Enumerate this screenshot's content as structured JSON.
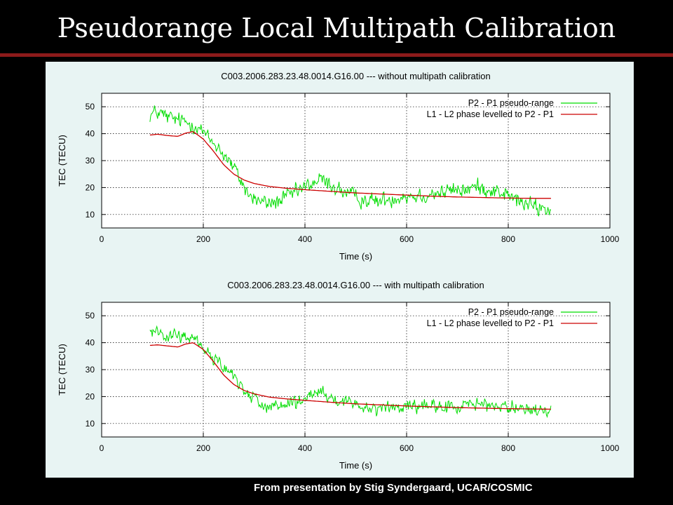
{
  "slide": {
    "title": "Pseudorange Local Multipath Calibration",
    "footer": "From presentation by Stig Syndergaard, UCAR/COSMIC"
  },
  "colors": {
    "background": "#000000",
    "title_rule": "#8c1a1a",
    "panel": "#e8f4f3",
    "pseudo_range": "#00dd00",
    "phase": "#cc0000"
  },
  "chart_data": [
    {
      "type": "line",
      "title": "C003.2006.283.23.48.0014.G16.00 --- without multipath calibration",
      "xlabel": "Time (s)",
      "ylabel": "TEC (TECU)",
      "xlim": [
        0,
        1000
      ],
      "ylim": [
        5,
        55
      ],
      "xticks": [
        0,
        200,
        400,
        600,
        800,
        1000
      ],
      "yticks": [
        10,
        20,
        30,
        40,
        50
      ],
      "grid": true,
      "legend": "top-right",
      "series": [
        {
          "name": "P2 - P1 pseudo-range",
          "color": "#00dd00",
          "noise": 2.2,
          "x": [
            95,
            110,
            130,
            150,
            170,
            190,
            210,
            230,
            250,
            270,
            290,
            310,
            330,
            350,
            370,
            390,
            410,
            430,
            450,
            470,
            490,
            510,
            530,
            550,
            570,
            590,
            610,
            630,
            650,
            670,
            690,
            710,
            730,
            750,
            770,
            790,
            810,
            830,
            850,
            870,
            885
          ],
          "y": [
            47,
            48,
            46,
            45,
            44,
            43,
            38,
            35,
            30,
            24,
            17,
            15,
            14,
            15,
            17,
            19,
            21,
            23,
            21,
            19,
            17,
            16,
            15,
            15,
            16,
            17,
            17,
            17,
            18,
            18,
            19,
            19,
            20,
            20,
            19,
            18,
            16,
            14,
            13,
            12,
            12
          ]
        },
        {
          "name": "L1 - L2 phase levelled to P2 - P1",
          "color": "#cc0000",
          "noise": 0,
          "x": [
            95,
            110,
            130,
            150,
            165,
            180,
            200,
            220,
            240,
            260,
            280,
            300,
            330,
            360,
            400,
            450,
            500,
            550,
            600,
            650,
            700,
            750,
            800,
            850,
            885
          ],
          "y": [
            39.5,
            39.8,
            39.3,
            39.0,
            40.2,
            40.8,
            38.0,
            33.5,
            28.5,
            25.0,
            22.8,
            21.5,
            20.4,
            19.8,
            19.2,
            18.6,
            18.0,
            17.6,
            17.2,
            16.8,
            16.5,
            16.3,
            16.1,
            16.0,
            16.0
          ]
        }
      ]
    },
    {
      "type": "line",
      "title": "C003.2006.283.23.48.0014.G16.00 --- with multipath calibration",
      "xlabel": "Time (s)",
      "ylabel": "TEC (TECU)",
      "xlim": [
        0,
        1000
      ],
      "ylim": [
        5,
        55
      ],
      "xticks": [
        0,
        200,
        400,
        600,
        800,
        1000
      ],
      "yticks": [
        10,
        20,
        30,
        40,
        50
      ],
      "grid": true,
      "legend": "top-right",
      "series": [
        {
          "name": "P2 - P1 pseudo-range",
          "color": "#00dd00",
          "noise": 1.8,
          "x": [
            95,
            110,
            130,
            150,
            170,
            190,
            210,
            230,
            250,
            270,
            290,
            310,
            330,
            350,
            370,
            390,
            410,
            430,
            450,
            470,
            490,
            510,
            530,
            550,
            570,
            590,
            610,
            630,
            650,
            670,
            690,
            710,
            730,
            750,
            770,
            790,
            810,
            830,
            850,
            870,
            885
          ],
          "y": [
            44,
            45,
            43,
            42,
            42,
            41,
            36,
            33,
            29,
            25,
            21,
            18,
            16,
            16,
            17,
            18,
            20,
            21,
            19,
            18,
            17,
            17,
            16,
            16,
            16,
            16,
            16,
            16,
            16,
            16,
            16,
            17,
            17,
            17,
            17,
            16,
            16,
            15,
            15,
            15,
            14
          ]
        },
        {
          "name": "L1 - L2 phase levelled to P2 - P1",
          "color": "#cc0000",
          "noise": 0,
          "x": [
            95,
            110,
            130,
            150,
            165,
            180,
            200,
            220,
            240,
            260,
            280,
            300,
            330,
            360,
            400,
            450,
            500,
            550,
            600,
            650,
            700,
            750,
            800,
            850,
            885
          ],
          "y": [
            39.0,
            39.2,
            38.8,
            38.4,
            39.5,
            40.0,
            37.5,
            33.0,
            28.0,
            24.5,
            22.3,
            21.0,
            19.8,
            19.2,
            18.6,
            17.9,
            17.3,
            16.9,
            16.5,
            16.2,
            15.9,
            15.7,
            15.5,
            15.4,
            15.3
          ]
        }
      ]
    }
  ]
}
